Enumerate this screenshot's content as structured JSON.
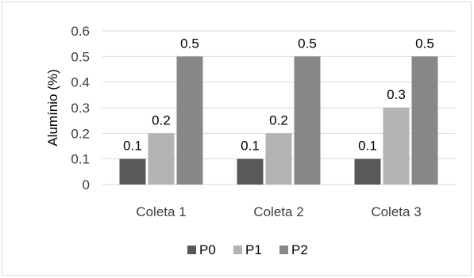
{
  "chart_data": {
    "type": "bar",
    "title": "",
    "xlabel": "",
    "ylabel": "Alumínio (%)",
    "categories": [
      "Coleta 1",
      "Coleta 2",
      "Coleta 3"
    ],
    "series": [
      {
        "name": "P0",
        "values": [
          0.1,
          0.1,
          0.1
        ],
        "color": "#595959"
      },
      {
        "name": "P1",
        "values": [
          0.2,
          0.2,
          0.3
        ],
        "color": "#b3b3b3"
      },
      {
        "name": "P2",
        "values": [
          0.5,
          0.5,
          0.5
        ],
        "color": "#878787"
      }
    ],
    "ylim": [
      0,
      0.6
    ],
    "yticks": [
      0,
      0.1,
      0.2,
      0.3,
      0.4,
      0.5,
      0.6
    ],
    "ytick_labels": [
      "0",
      "0.1",
      "0.2",
      "0.3",
      "0.4",
      "0.5",
      "0.6"
    ],
    "data_labels": [
      [
        "0.1",
        "0.1",
        "0.1"
      ],
      [
        "0.2",
        "0.2",
        "0.3"
      ],
      [
        "0.5",
        "0.5",
        "0.5"
      ]
    ],
    "grid": true,
    "legend_position": "bottom",
    "colors": {
      "gridline": "#d9d9d9",
      "axis_line": "#d9d9d9",
      "border": "#d9d9d9"
    }
  }
}
